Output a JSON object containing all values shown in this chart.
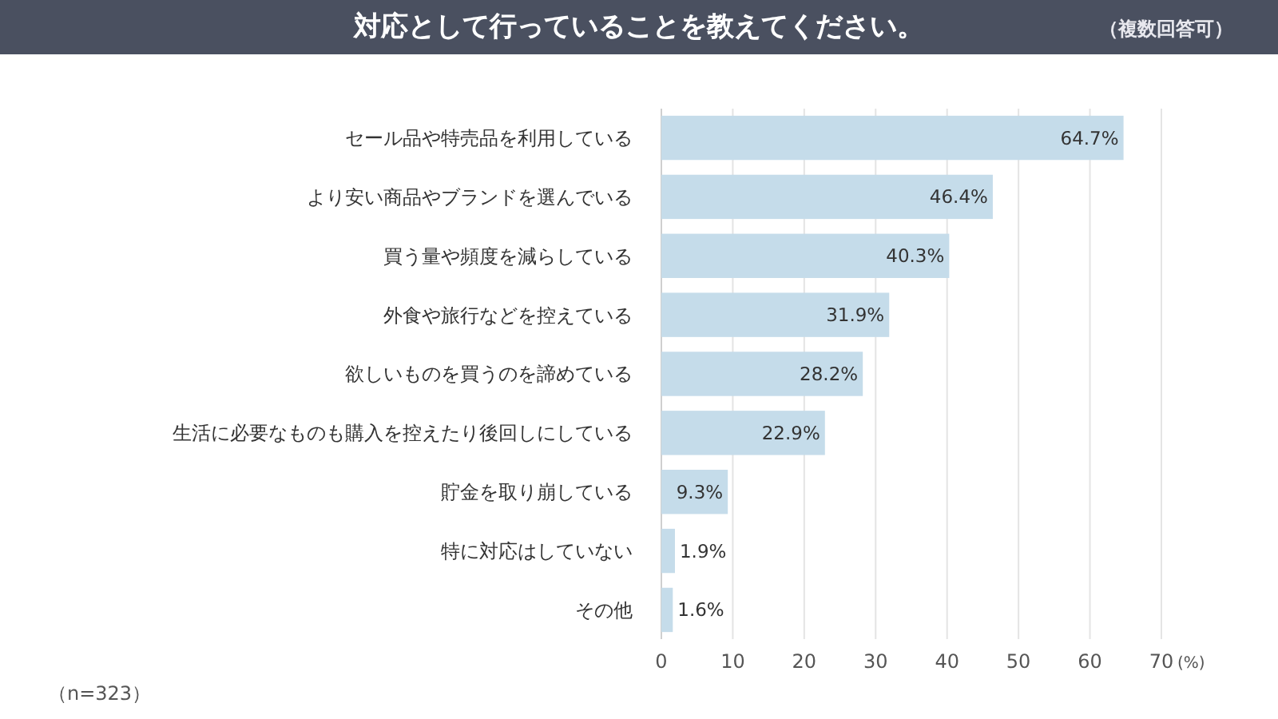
{
  "chart_data": {
    "type": "bar",
    "orientation": "horizontal",
    "title": "対応として行っていることを教えてください。",
    "subtitle": "（複数回答可）",
    "xlabel": "(%)",
    "categories": [
      "セール品や特売品を利用している",
      "より安い商品やブランドを選んでいる",
      "買う量や頻度を減らしている",
      "外食や旅行などを控えている",
      "欲しいものを買うのを諦めている",
      "生活に必要なものも購入を控えたり後回しにしている",
      "貯金を取り崩している",
      "特に対応はしていない",
      "その他"
    ],
    "values": [
      64.7,
      46.4,
      40.3,
      31.9,
      28.2,
      22.9,
      9.3,
      1.9,
      1.6
    ],
    "value_labels": [
      "64.7%",
      "46.4%",
      "40.3%",
      "31.9%",
      "28.2%",
      "22.9%",
      "9.3%",
      "1.9%",
      "1.6%"
    ],
    "color": "#c5dcea",
    "xlim": [
      0,
      70
    ],
    "xticks": [
      0,
      10,
      20,
      30,
      40,
      50,
      60,
      70
    ],
    "grid": "x",
    "annotations": [
      "（n=323）"
    ]
  }
}
